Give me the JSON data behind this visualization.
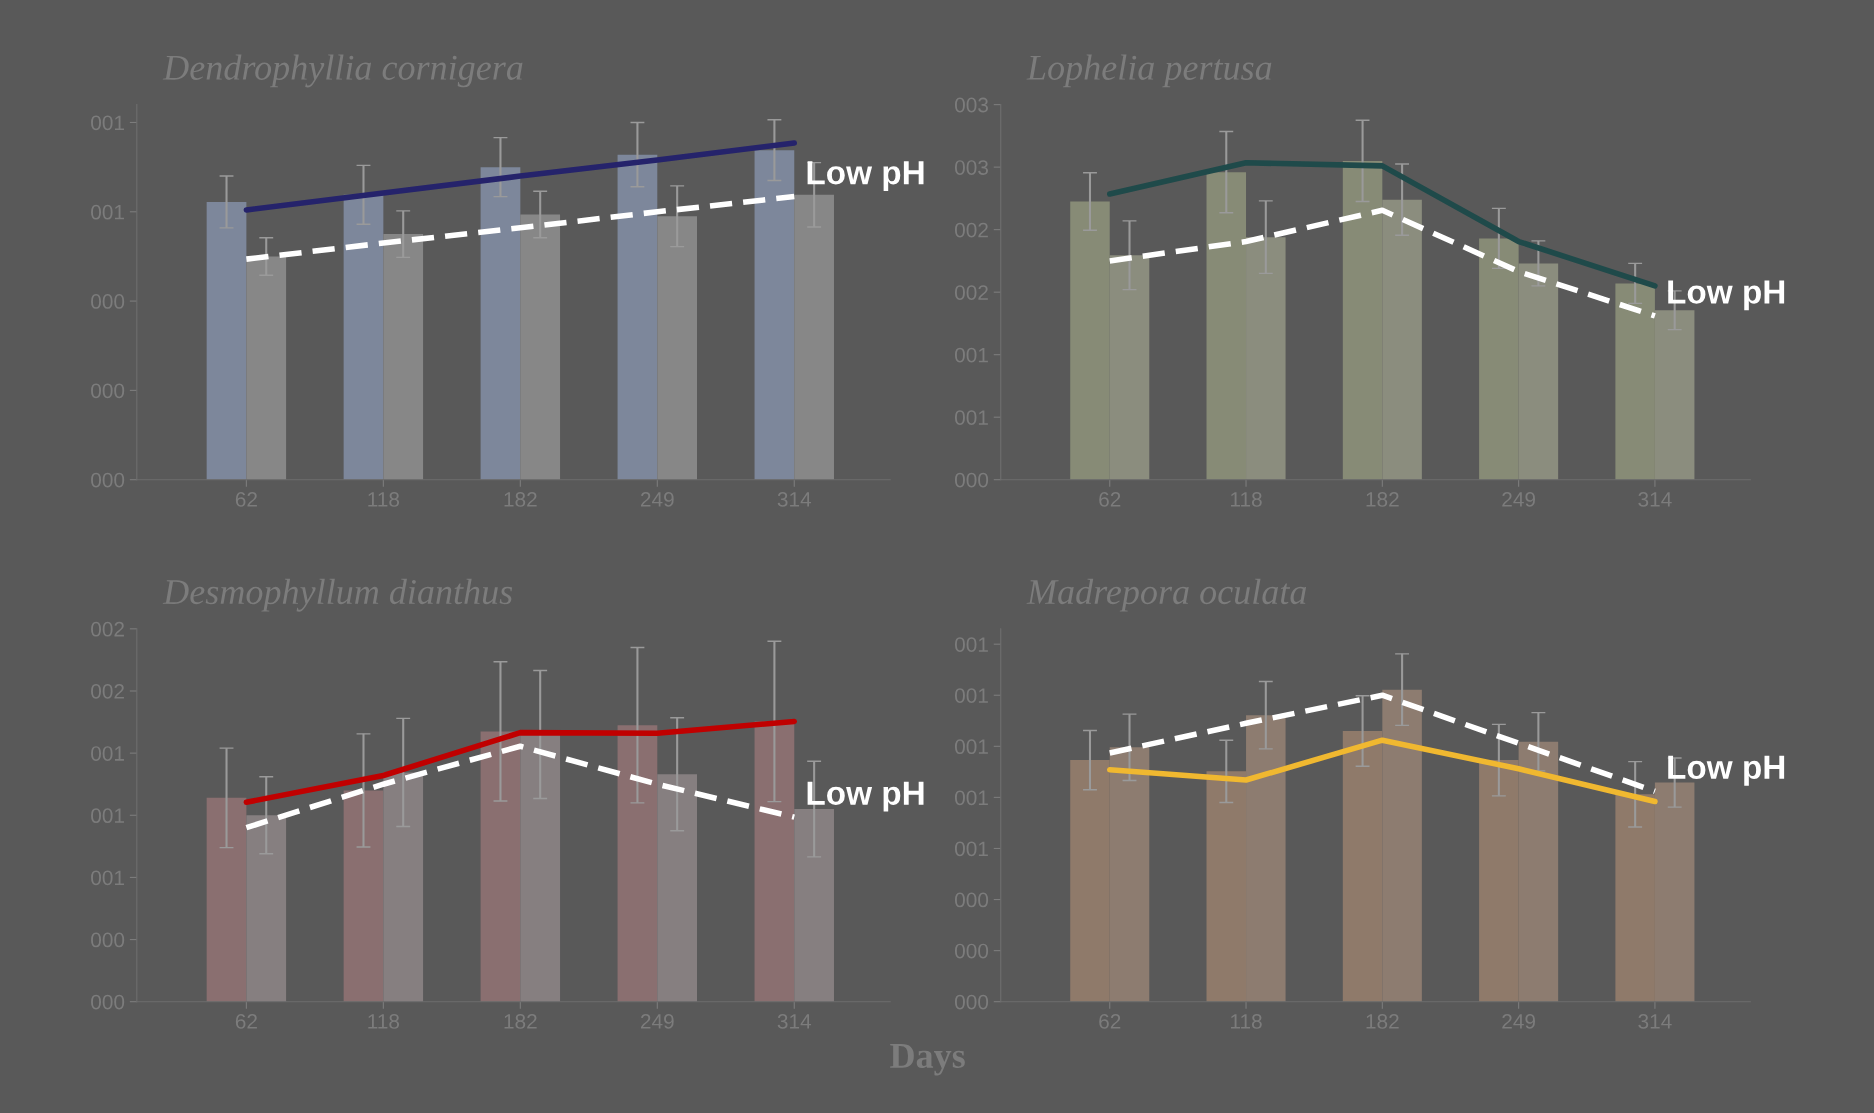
{
  "chart_data": [
    {
      "type": "bar",
      "title": "Dendrophyllia cornigera",
      "categories": [
        "62",
        "118",
        "182",
        "249",
        "314"
      ],
      "ylim": [
        0,
        0.84
      ],
      "yticks": [
        {
          "value": 0,
          "label": "000"
        },
        {
          "value": 0.2,
          "label": "000"
        },
        {
          "value": 0.4,
          "label": "000"
        },
        {
          "value": 0.6,
          "label": "001"
        },
        {
          "value": 0.8,
          "label": "001"
        }
      ],
      "grid": false,
      "legend": false,
      "series": [
        {
          "type": "bar",
          "color": "#7d879b",
          "values": [
            0.622,
            0.638,
            0.7,
            0.728,
            0.738
          ],
          "errors": [
            0.058,
            0.066,
            0.066,
            0.072,
            0.068
          ]
        },
        {
          "type": "bar",
          "color": "#878787",
          "values": [
            0.5,
            0.55,
            0.594,
            0.59,
            0.638
          ],
          "errors": [
            0.042,
            0.052,
            0.052,
            0.068,
            0.072
          ]
        },
        {
          "type": "line",
          "color": "#25236b",
          "line_style": "solid",
          "values": [
            0.604,
            0.642,
            0.68,
            0.716,
            0.754
          ]
        },
        {
          "type": "line",
          "name": "Low pH",
          "color": "#ffffff",
          "line_style": "dashed",
          "values": [
            0.494,
            0.53,
            0.564,
            0.6,
            0.634
          ]
        }
      ]
    },
    {
      "type": "bar",
      "title": "Lophelia pertusa",
      "categories": [
        "62",
        "118",
        "182",
        "249",
        "314"
      ],
      "ylim": [
        0,
        3
      ],
      "yticks": [
        {
          "value": 0,
          "label": "000"
        },
        {
          "value": 0.5,
          "label": "001"
        },
        {
          "value": 1,
          "label": "001"
        },
        {
          "value": 1.5,
          "label": "002"
        },
        {
          "value": 2,
          "label": "002"
        },
        {
          "value": 2.5,
          "label": "003"
        },
        {
          "value": 3,
          "label": "003"
        }
      ],
      "grid": false,
      "legend": false,
      "series": [
        {
          "type": "bar",
          "color": "#878b76",
          "values": [
            2.225,
            2.46,
            2.55,
            1.93,
            1.57
          ],
          "errors": [
            0.23,
            0.325,
            0.325,
            0.24,
            0.16
          ]
        },
        {
          "type": "bar",
          "color": "#8b8d7e",
          "values": [
            1.795,
            1.94,
            2.24,
            1.73,
            1.355
          ],
          "errors": [
            0.275,
            0.29,
            0.285,
            0.18,
            0.155
          ]
        },
        {
          "type": "line",
          "color": "#1f4a4a",
          "line_style": "solid",
          "values": [
            2.285,
            2.535,
            2.51,
            1.905,
            1.55
          ]
        },
        {
          "type": "line",
          "name": "Low pH",
          "color": "#ffffff",
          "line_style": "dashed",
          "values": [
            1.75,
            1.905,
            2.155,
            1.665,
            1.31
          ]
        }
      ]
    },
    {
      "type": "bar",
      "title": "Desmophyllum dianthus",
      "xlabel": "Days",
      "categories": [
        "62",
        "118",
        "182",
        "249",
        "314"
      ],
      "ylim": [
        0,
        1.8
      ],
      "yticks": [
        {
          "value": 0,
          "label": "000"
        },
        {
          "value": 0.3,
          "label": "000"
        },
        {
          "value": 0.6,
          "label": "001"
        },
        {
          "value": 0.9,
          "label": "001"
        },
        {
          "value": 1.2,
          "label": "001"
        },
        {
          "value": 1.5,
          "label": "002"
        },
        {
          "value": 1.8,
          "label": "002"
        }
      ],
      "grid": false,
      "legend": false,
      "series": [
        {
          "type": "bar",
          "color": "#8a6f70",
          "values": [
            0.984,
            1.02,
            1.305,
            1.335,
            1.353
          ],
          "errors": [
            0.24,
            0.273,
            0.336,
            0.375,
            0.387
          ]
        },
        {
          "type": "bar",
          "color": "#867f80",
          "values": [
            0.9,
            1.107,
            1.29,
            1.098,
            0.93
          ],
          "errors": [
            0.186,
            0.261,
            0.309,
            0.273,
            0.231
          ]
        },
        {
          "type": "line",
          "color": "#c00000",
          "line_style": "solid",
          "values": [
            0.963,
            1.092,
            1.299,
            1.296,
            1.353
          ]
        },
        {
          "type": "line",
          "name": "Low pH",
          "color": "#ffffff",
          "line_style": "dashed",
          "values": [
            0.84,
            1.05,
            1.233,
            1.05,
            0.891
          ]
        }
      ]
    },
    {
      "type": "bar",
      "title": "Madrepora oculata",
      "categories": [
        "62",
        "118",
        "182",
        "249",
        "314"
      ],
      "ylim": [
        0,
        1.46
      ],
      "yticks": [
        {
          "value": 0,
          "label": "000"
        },
        {
          "value": 0.2,
          "label": "000"
        },
        {
          "value": 0.4,
          "label": "000"
        },
        {
          "value": 0.6,
          "label": "001"
        },
        {
          "value": 0.8,
          "label": "001"
        },
        {
          "value": 1.0,
          "label": "001"
        },
        {
          "value": 1.2,
          "label": "001"
        },
        {
          "value": 1.4,
          "label": "001"
        }
      ],
      "grid": false,
      "legend": false,
      "series": [
        {
          "type": "bar",
          "color": "#8f7a6a",
          "values": [
            0.946,
            0.902,
            1.06,
            0.946,
            0.812
          ],
          "errors": [
            0.116,
            0.122,
            0.138,
            0.14,
            0.128
          ]
        },
        {
          "type": "bar",
          "color": "#8d7c70",
          "values": [
            0.996,
            1.122,
            1.222,
            1.018,
            0.858
          ],
          "errors": [
            0.13,
            0.132,
            0.14,
            0.114,
            0.096
          ]
        },
        {
          "type": "line",
          "color": "#f0b830",
          "line_style": "solid",
          "values": [
            0.908,
            0.868,
            1.024,
            0.912,
            0.784
          ]
        },
        {
          "type": "line",
          "name": "Low pH",
          "color": "#ffffff",
          "line_style": "dashed",
          "values": [
            0.974,
            1.09,
            1.2,
            1.012,
            0.824
          ]
        }
      ]
    }
  ]
}
